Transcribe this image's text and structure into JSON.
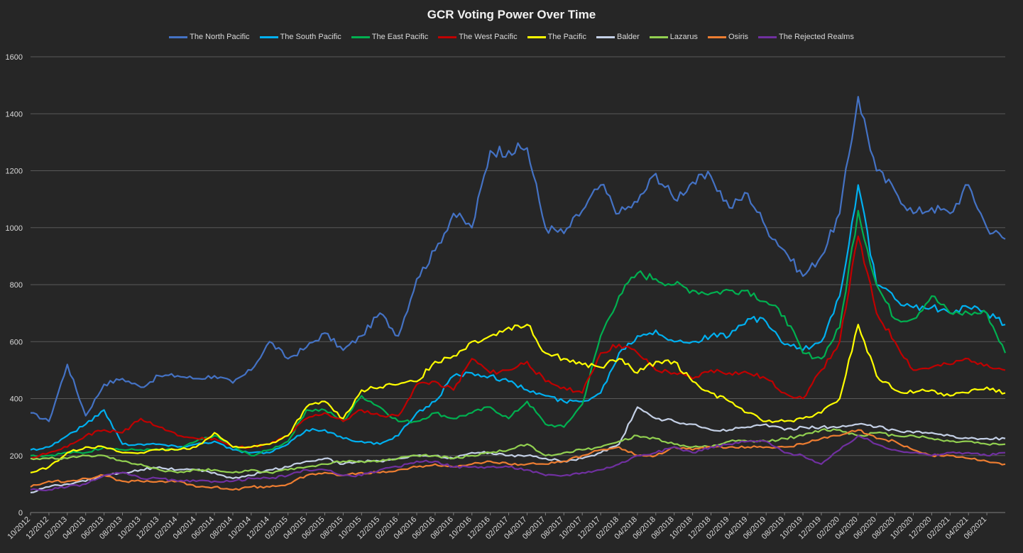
{
  "chart_data": {
    "type": "line",
    "title": "GCR Voting Power Over Time",
    "xlabel": "",
    "ylabel": "",
    "ylim": [
      0,
      1600
    ],
    "yticks": [
      "0",
      "200",
      "400",
      "600",
      "800",
      "1000",
      "1200",
      "1400",
      "1600"
    ],
    "grid": true,
    "legend_position": "top",
    "x_range": [
      "10/2012",
      "08/2021"
    ],
    "xtick_labels": [
      "10/2012",
      "12/2012",
      "02/2013",
      "04/2013",
      "06/2013",
      "08/2013",
      "10/2013",
      "12/2013",
      "02/2014",
      "04/2014",
      "06/2014",
      "08/2014",
      "10/2014",
      "12/2014",
      "02/2015",
      "04/2015",
      "06/2015",
      "08/2015",
      "10/2015",
      "12/2015",
      "02/2016",
      "04/2016",
      "06/2016",
      "08/2016",
      "10/2016",
      "12/2016",
      "02/2017",
      "04/2017",
      "06/2017",
      "08/2017",
      "10/2017",
      "12/2017",
      "02/2018",
      "04/2018",
      "06/2018",
      "08/2018",
      "10/2018",
      "12/2018",
      "02/2019",
      "04/2019",
      "06/2019",
      "08/2019",
      "10/2019",
      "12/2019",
      "02/2020",
      "04/2020",
      "06/2020",
      "08/2020",
      "10/2020",
      "12/2020",
      "02/2021",
      "04/2021",
      "06/2021"
    ],
    "x": [
      "10/2012",
      "12/2012",
      "02/2013",
      "04/2013",
      "06/2013",
      "08/2013",
      "10/2013",
      "12/2013",
      "02/2014",
      "04/2014",
      "06/2014",
      "08/2014",
      "10/2014",
      "12/2014",
      "02/2015",
      "04/2015",
      "06/2015",
      "08/2015",
      "10/2015",
      "12/2015",
      "02/2016",
      "04/2016",
      "06/2016",
      "08/2016",
      "10/2016",
      "12/2016",
      "02/2017",
      "04/2017",
      "06/2017",
      "08/2017",
      "10/2017",
      "12/2017",
      "02/2018",
      "04/2018",
      "06/2018",
      "08/2018",
      "10/2018",
      "12/2018",
      "02/2019",
      "04/2019",
      "06/2019",
      "08/2019",
      "10/2019",
      "12/2019",
      "02/2020",
      "04/2020",
      "06/2020",
      "08/2020",
      "10/2020",
      "12/2020",
      "02/2021",
      "04/2021",
      "06/2021",
      "08/2021"
    ],
    "series": [
      {
        "name": "The North Pacific",
        "color": "#4472c4",
        "values": [
          350,
          320,
          520,
          340,
          450,
          470,
          440,
          480,
          480,
          470,
          480,
          455,
          500,
          600,
          540,
          580,
          630,
          570,
          620,
          700,
          620,
          820,
          920,
          1050,
          1000,
          1270,
          1270,
          1280,
          1000,
          980,
          1060,
          1150,
          1050,
          1090,
          1190,
          1100,
          1160,
          1180,
          1070,
          1120,
          1000,
          920,
          830,
          900,
          1050,
          1460,
          1200,
          1130,
          1050,
          1070,
          1050,
          1150,
          1000,
          960
        ]
      },
      {
        "name": "The South Pacific",
        "color": "#00b0f0",
        "values": [
          220,
          230,
          270,
          310,
          360,
          240,
          240,
          240,
          230,
          240,
          250,
          220,
          210,
          210,
          240,
          290,
          290,
          260,
          250,
          240,
          270,
          350,
          390,
          480,
          490,
          480,
          460,
          430,
          410,
          390,
          390,
          420,
          560,
          620,
          640,
          600,
          600,
          620,
          620,
          680,
          670,
          590,
          570,
          600,
          760,
          1150,
          800,
          750,
          720,
          720,
          700,
          720,
          700,
          660
        ]
      },
      {
        "name": "The East Pacific",
        "color": "#00b050",
        "values": [
          200,
          200,
          210,
          210,
          230,
          220,
          220,
          220,
          220,
          250,
          270,
          230,
          200,
          220,
          250,
          360,
          360,
          320,
          410,
          370,
          320,
          320,
          350,
          330,
          350,
          370,
          330,
          390,
          310,
          300,
          380,
          620,
          760,
          840,
          820,
          800,
          780,
          770,
          780,
          780,
          740,
          690,
          560,
          540,
          650,
          1060,
          800,
          680,
          680,
          760,
          700,
          700,
          700,
          560
        ]
      },
      {
        "name": "The West Pacific",
        "color": "#c00000",
        "values": [
          190,
          210,
          230,
          270,
          290,
          280,
          330,
          300,
          270,
          260,
          260,
          230,
          230,
          240,
          270,
          330,
          350,
          320,
          360,
          340,
          340,
          450,
          460,
          430,
          540,
          490,
          500,
          530,
          460,
          440,
          420,
          560,
          590,
          560,
          500,
          490,
          470,
          500,
          490,
          490,
          470,
          420,
          400,
          500,
          600,
          970,
          700,
          600,
          500,
          510,
          520,
          540,
          520,
          500
        ]
      },
      {
        "name": "The Pacific",
        "color": "#ffff00",
        "values": [
          140,
          160,
          210,
          230,
          230,
          210,
          210,
          220,
          220,
          230,
          280,
          230,
          230,
          240,
          270,
          370,
          390,
          330,
          430,
          440,
          450,
          460,
          530,
          550,
          600,
          620,
          650,
          660,
          560,
          540,
          520,
          510,
          540,
          490,
          530,
          530,
          460,
          420,
          390,
          350,
          320,
          320,
          330,
          350,
          400,
          660,
          480,
          430,
          420,
          430,
          410,
          420,
          440,
          420
        ]
      },
      {
        "name": "Balder",
        "color": "#c4d0e6",
        "values": [
          70,
          90,
          100,
          110,
          130,
          140,
          150,
          160,
          150,
          150,
          140,
          120,
          130,
          150,
          160,
          180,
          190,
          170,
          180,
          180,
          190,
          200,
          200,
          190,
          210,
          210,
          200,
          200,
          190,
          180,
          190,
          210,
          240,
          370,
          330,
          320,
          310,
          290,
          290,
          300,
          310,
          290,
          300,
          300,
          300,
          310,
          300,
          290,
          280,
          280,
          270,
          260,
          260,
          260
        ]
      },
      {
        "name": "Lazarus",
        "color": "#92d050",
        "values": [
          190,
          190,
          190,
          200,
          200,
          180,
          170,
          150,
          140,
          150,
          150,
          140,
          150,
          140,
          150,
          160,
          170,
          180,
          180,
          180,
          190,
          200,
          200,
          190,
          200,
          210,
          220,
          240,
          200,
          210,
          220,
          230,
          250,
          270,
          260,
          240,
          230,
          230,
          250,
          250,
          250,
          260,
          270,
          290,
          290,
          270,
          280,
          270,
          270,
          260,
          250,
          250,
          240,
          240
        ]
      },
      {
        "name": "Osiris",
        "color": "#ed7d31",
        "values": [
          90,
          110,
          110,
          120,
          130,
          110,
          110,
          110,
          110,
          90,
          90,
          80,
          90,
          90,
          100,
          130,
          140,
          130,
          140,
          140,
          150,
          160,
          170,
          160,
          170,
          180,
          170,
          170,
          170,
          180,
          200,
          220,
          230,
          200,
          200,
          230,
          220,
          230,
          230,
          230,
          230,
          230,
          240,
          260,
          270,
          290,
          260,
          250,
          220,
          200,
          200,
          190,
          180,
          170
        ]
      },
      {
        "name": "The Rejected Realms",
        "color": "#7030a0",
        "values": [
          80,
          80,
          90,
          100,
          130,
          140,
          120,
          120,
          110,
          110,
          110,
          110,
          120,
          120,
          130,
          150,
          150,
          130,
          130,
          150,
          160,
          180,
          180,
          160,
          160,
          160,
          160,
          150,
          130,
          130,
          140,
          150,
          170,
          200,
          210,
          230,
          210,
          230,
          240,
          250,
          250,
          210,
          200,
          170,
          220,
          270,
          240,
          220,
          210,
          200,
          210,
          210,
          200,
          210
        ]
      }
    ]
  }
}
